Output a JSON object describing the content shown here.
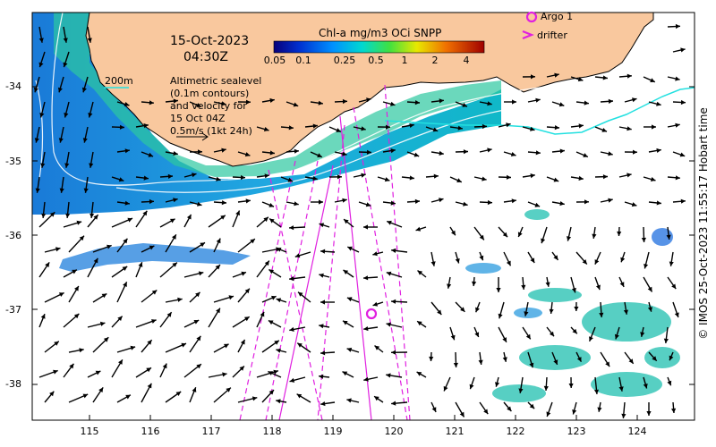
{
  "map": {
    "date": "15-Oct-2023",
    "time": "04:30Z",
    "note_lines": [
      "Altimetric sealevel",
      "(0.1m contours)",
      "and velocity for",
      "15 Oct 04Z",
      "0.5m/s (1kt 24h)"
    ],
    "isobath_label": "200m",
    "colorbar": {
      "title": "Chl-a mg/m3 OCi SNPP",
      "ticks": [
        "0.05",
        "0.1",
        "0.25",
        "0.5",
        "1",
        "2",
        "4"
      ]
    },
    "legend": {
      "argo": "Argo 1",
      "drifter": "drifter"
    },
    "lat_labels": [
      "-34",
      "-35",
      "-36",
      "-37",
      "-38"
    ],
    "lon_labels": [
      "115",
      "116",
      "117",
      "118",
      "119",
      "120",
      "121",
      "122",
      "123",
      "124"
    ],
    "credit": "© IMOS 25-Oct-2023 11:55:17 Hobart time",
    "colors": {
      "land": "#f9c89e",
      "isobath": "#22e0e0",
      "track": "#e020e0",
      "argo": "#e020e0",
      "arrow": "#000000"
    }
  }
}
